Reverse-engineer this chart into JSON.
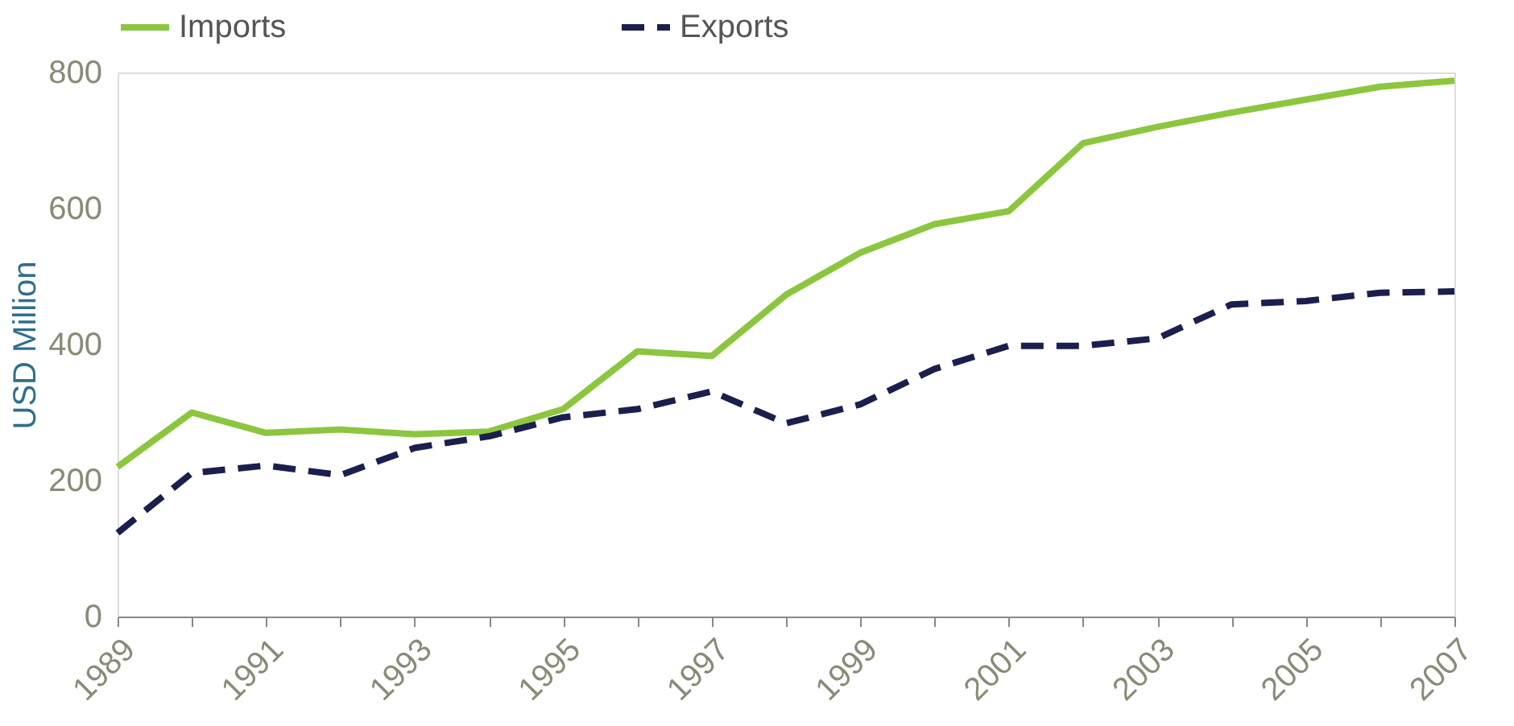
{
  "chart_data": {
    "type": "line",
    "ylabel": "USD Million",
    "categories": [
      "1989",
      null,
      "1991",
      null,
      "1993",
      null,
      "1995",
      null,
      "1997",
      null,
      "1999",
      null,
      "2001",
      null,
      "2003",
      null,
      "2005",
      null,
      "2007"
    ],
    "series": [
      {
        "name": "Imports",
        "color": "#8cc63e",
        "line_style": "solid",
        "values": [
          220,
          300,
          270,
          275,
          268,
          272,
          305,
          390,
          383,
          473,
          535,
          577,
          596,
          696,
          720,
          741,
          760,
          779,
          788
        ]
      },
      {
        "name": "Exports",
        "color": "#1b1f4d",
        "line_style": "dashed",
        "values": [
          123,
          211,
          222,
          208,
          248,
          265,
          293,
          305,
          331,
          284,
          312,
          364,
          398,
          398,
          409,
          459,
          464,
          476,
          478
        ]
      }
    ],
    "ylim": [
      0,
      800
    ],
    "yticks": [
      0,
      200,
      400,
      600,
      800
    ],
    "grid": false,
    "legend": "top",
    "marker": "none"
  }
}
